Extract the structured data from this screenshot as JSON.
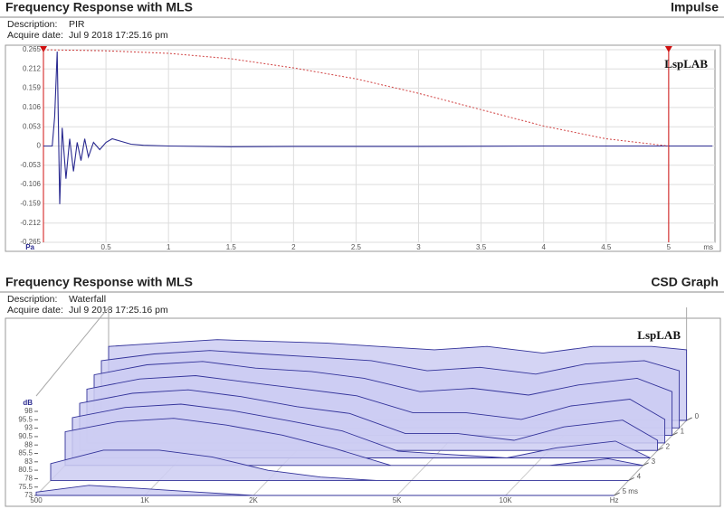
{
  "chart_data": [
    {
      "type": "line",
      "title": "Frequency Response with MLS",
      "panel_title": "Impulse",
      "description_label": "Description:",
      "description": "PIR",
      "date_label": "Acquire date:",
      "date": "Jul 9 2018  17:25.16 pm",
      "watermark": "LspLAB",
      "x_unit": "ms",
      "y_unit": "Pa",
      "xlim": [
        0,
        5.37
      ],
      "ylim": [
        -0.265,
        0.265
      ],
      "xticks": [
        0.5,
        1,
        1.5,
        2,
        2.5,
        3,
        3.5,
        4,
        4.5,
        5
      ],
      "yticks": [
        0.265,
        0.212,
        0.159,
        0.106,
        0.053,
        0,
        -0.053,
        -0.106,
        -0.159,
        -0.212,
        -0.265
      ],
      "grid": true,
      "cursors": [
        0,
        5
      ],
      "cursor_color": "#d01010",
      "series": [
        {
          "color": "#2a2a90",
          "style": "solid",
          "x": [
            0,
            0.07,
            0.09,
            0.11,
            0.13,
            0.15,
            0.18,
            0.21,
            0.24,
            0.27,
            0.3,
            0.33,
            0.36,
            0.4,
            0.45,
            0.5,
            0.55,
            0.6,
            0.7,
            0.8,
            1.0,
            1.5,
            2,
            3,
            4,
            5,
            5.35
          ],
          "values": [
            0,
            0,
            0.08,
            0.26,
            -0.16,
            0.05,
            -0.09,
            0.02,
            -0.07,
            0.01,
            -0.04,
            0.02,
            -0.03,
            0.01,
            -0.01,
            0.01,
            0.02,
            0.015,
            0.005,
            0.002,
            0,
            -0.002,
            -0.001,
            -0.001,
            0,
            0,
            0
          ]
        },
        {
          "color": "#d04040",
          "style": "dotted",
          "x": [
            0,
            0.5,
            1,
            1.5,
            2,
            2.5,
            3,
            3.5,
            4,
            4.5,
            5
          ],
          "values": [
            0.265,
            0.262,
            0.255,
            0.24,
            0.215,
            0.185,
            0.145,
            0.1,
            0.055,
            0.02,
            0
          ]
        }
      ]
    },
    {
      "type": "waterfall",
      "title": "Frequency Response with MLS",
      "panel_title": "CSD Graph",
      "description_label": "Description:",
      "description": "Waterfall",
      "date_label": "Acquire date:",
      "date": "Jul 9 2018  17:25.16 pm",
      "watermark": "LspLAB",
      "x_unit": "Hz",
      "z_unit": "dB",
      "log_x": true,
      "xlim": [
        500,
        20000
      ],
      "xticks": [
        500,
        {
          "value": 1000,
          "label": "1K"
        },
        {
          "value": 2000,
          "label": "2K"
        },
        {
          "value": 5000,
          "label": "5K"
        },
        {
          "value": 10000,
          "label": "10K"
        }
      ],
      "tlim": [
        0,
        5
      ],
      "tticks": [
        0,
        1,
        2,
        3,
        4,
        {
          "value": 5,
          "label": "5 ms"
        }
      ],
      "zlim": [
        73,
        98
      ],
      "zticks": [
        98,
        95.5,
        93,
        90.5,
        88,
        85.5,
        83,
        80.5,
        78,
        75.5,
        73
      ],
      "fill_color": "#cdcdf2",
      "line_color": "#33339a",
      "frequencies": [
        500,
        700,
        1000,
        1400,
        2000,
        2800,
        4000,
        5600,
        8000,
        11000,
        16000,
        20000
      ],
      "slices": [
        {
          "time": 0,
          "values": [
            95,
            96,
            97,
            96.5,
            96,
            95,
            94,
            95,
            93,
            95,
            95,
            94
          ]
        },
        {
          "time": 0.5,
          "values": [
            93,
            95,
            96,
            95,
            94,
            93,
            90,
            91,
            89,
            92,
            93,
            90
          ]
        },
        {
          "time": 1,
          "values": [
            91,
            94,
            95,
            93,
            92,
            90,
            86,
            87,
            85,
            88,
            90,
            86
          ]
        },
        {
          "time": 1.5,
          "values": [
            89,
            92,
            93,
            91,
            89,
            87,
            82,
            82,
            80,
            84,
            86,
            80
          ]
        },
        {
          "time": 2,
          "values": [
            87,
            90,
            91,
            89,
            86,
            84,
            78,
            78,
            76,
            80,
            82,
            76
          ]
        },
        {
          "time": 2.5,
          "values": [
            85,
            88,
            89,
            87,
            84,
            81,
            75,
            74,
            73,
            76,
            78,
            73
          ]
        },
        {
          "time": 3,
          "values": [
            83,
            86,
            87,
            85,
            82,
            78,
            73,
            73,
            73,
            73,
            75,
            73
          ]
        },
        {
          "time": 4,
          "values": [
            78,
            82,
            82,
            80,
            76,
            74,
            73,
            73,
            73,
            73,
            73,
            73
          ]
        },
        {
          "time": 5,
          "values": [
            74,
            76,
            75,
            74,
            73,
            73,
            73,
            73,
            73,
            73,
            73,
            73
          ]
        }
      ]
    }
  ]
}
